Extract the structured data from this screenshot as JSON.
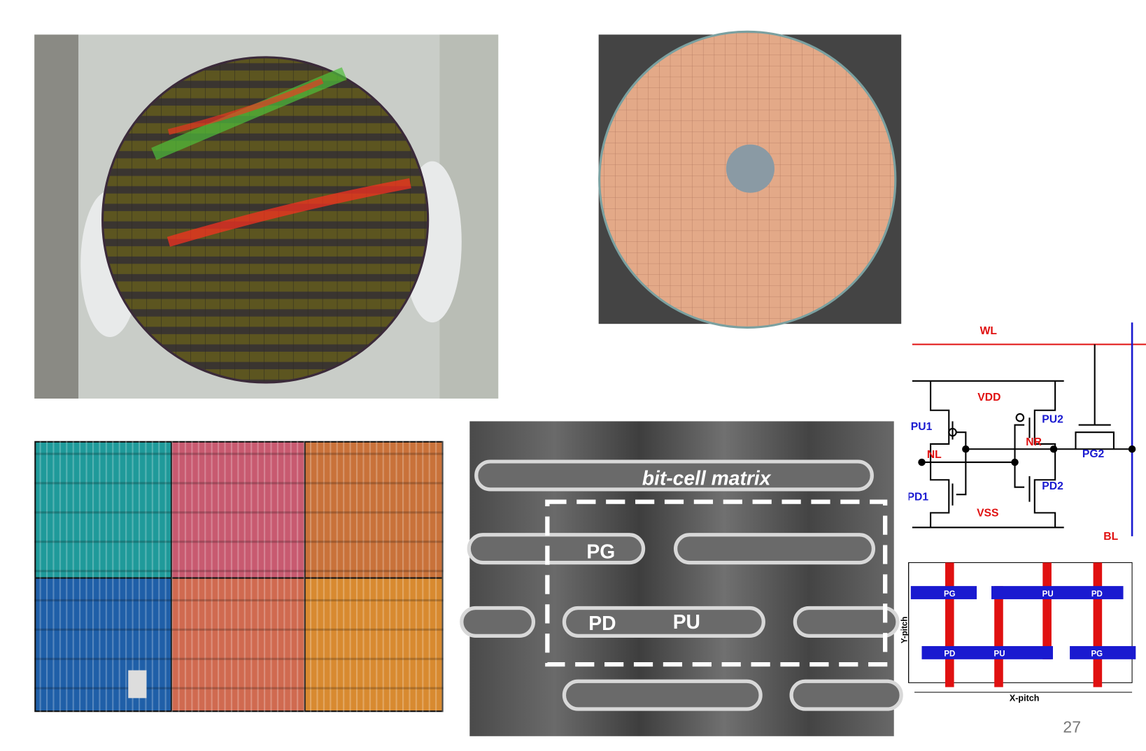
{
  "sem": {
    "caption": "bit-cell matrix",
    "labels": [
      "PG",
      "PD",
      "PU"
    ]
  },
  "schematic": {
    "labels": [
      "WL",
      "VDD",
      "PU1",
      "PU2",
      "NL",
      "NR",
      "PG2",
      "PD1",
      "PD2",
      "VSS",
      "BL"
    ]
  },
  "layout": {
    "labels": [
      "PG",
      "PU",
      "PD",
      "PD",
      "PU",
      "PG"
    ],
    "y_pitch": "Y-pitch",
    "x_pitch": "X-pitch"
  },
  "page_number": "27"
}
